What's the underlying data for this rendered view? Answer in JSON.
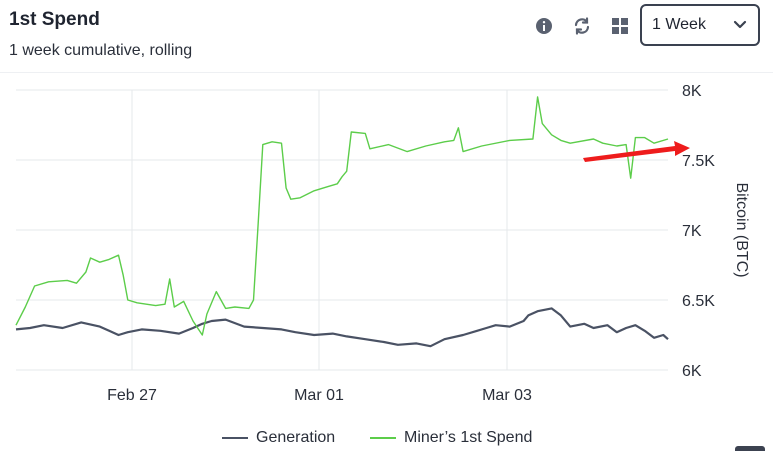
{
  "header": {
    "title": "1st Spend",
    "subtitle": "1 week cumulative, rolling"
  },
  "toolbar": {
    "info_icon": "info-icon",
    "refresh_icon": "refresh-icon",
    "grid_icon": "grid-icon",
    "range_select": {
      "value": "1 Week"
    }
  },
  "colors": {
    "generation": "#4a5264",
    "miners_first_spend": "#5ccd4a",
    "grid": "#e6e8eb",
    "annotation_arrow": "#ee1c1c"
  },
  "chart_data": {
    "type": "line",
    "x_ticks": [
      "Feb 27",
      "Mar 01",
      "Mar 03"
    ],
    "ylabel": "Bitcoin (BTC)",
    "y_ticks": [
      "6K",
      "6.5K",
      "7K",
      "7.5K",
      "8K"
    ],
    "ylim": [
      6000,
      8000
    ],
    "xlim": [
      0,
      7
    ],
    "grid": true,
    "legend_position": "bottom",
    "series": [
      {
        "name": "Generation",
        "points": [
          [
            0.0,
            6290
          ],
          [
            0.15,
            6300
          ],
          [
            0.3,
            6320
          ],
          [
            0.5,
            6300
          ],
          [
            0.7,
            6340
          ],
          [
            0.9,
            6310
          ],
          [
            1.0,
            6280
          ],
          [
            1.1,
            6250
          ],
          [
            1.2,
            6270
          ],
          [
            1.35,
            6290
          ],
          [
            1.55,
            6280
          ],
          [
            1.75,
            6260
          ],
          [
            1.9,
            6300
          ],
          [
            2.0,
            6330
          ],
          [
            2.1,
            6350
          ],
          [
            2.25,
            6360
          ],
          [
            2.45,
            6310
          ],
          [
            2.65,
            6300
          ],
          [
            2.85,
            6290
          ],
          [
            3.0,
            6270
          ],
          [
            3.2,
            6250
          ],
          [
            3.4,
            6260
          ],
          [
            3.55,
            6240
          ],
          [
            3.75,
            6220
          ],
          [
            3.95,
            6200
          ],
          [
            4.1,
            6180
          ],
          [
            4.3,
            6190
          ],
          [
            4.45,
            6170
          ],
          [
            4.6,
            6220
          ],
          [
            4.8,
            6250
          ],
          [
            4.95,
            6280
          ],
          [
            5.05,
            6300
          ],
          [
            5.15,
            6320
          ],
          [
            5.3,
            6310
          ],
          [
            5.45,
            6350
          ],
          [
            5.5,
            6390
          ],
          [
            5.6,
            6420
          ],
          [
            5.75,
            6440
          ],
          [
            5.85,
            6390
          ],
          [
            5.95,
            6310
          ],
          [
            6.1,
            6330
          ],
          [
            6.2,
            6300
          ],
          [
            6.35,
            6320
          ],
          [
            6.45,
            6270
          ],
          [
            6.55,
            6300
          ],
          [
            6.65,
            6320
          ],
          [
            6.75,
            6280
          ],
          [
            6.85,
            6230
          ],
          [
            6.95,
            6250
          ],
          [
            7.0,
            6220
          ]
        ]
      },
      {
        "name": "Miner’s 1st Spend",
        "points": [
          [
            0.0,
            6320
          ],
          [
            0.1,
            6450
          ],
          [
            0.2,
            6600
          ],
          [
            0.35,
            6630
          ],
          [
            0.55,
            6640
          ],
          [
            0.65,
            6620
          ],
          [
            0.75,
            6700
          ],
          [
            0.8,
            6800
          ],
          [
            0.9,
            6770
          ],
          [
            1.0,
            6790
          ],
          [
            1.1,
            6820
          ],
          [
            1.15,
            6680
          ],
          [
            1.2,
            6500
          ],
          [
            1.3,
            6480
          ],
          [
            1.5,
            6460
          ],
          [
            1.6,
            6470
          ],
          [
            1.65,
            6650
          ],
          [
            1.7,
            6450
          ],
          [
            1.8,
            6490
          ],
          [
            1.9,
            6350
          ],
          [
            2.0,
            6250
          ],
          [
            2.05,
            6400
          ],
          [
            2.15,
            6560
          ],
          [
            2.25,
            6440
          ],
          [
            2.35,
            6450
          ],
          [
            2.5,
            6440
          ],
          [
            2.55,
            6500
          ],
          [
            2.6,
            7050
          ],
          [
            2.65,
            7610
          ],
          [
            2.75,
            7630
          ],
          [
            2.85,
            7620
          ],
          [
            2.9,
            7300
          ],
          [
            2.95,
            7220
          ],
          [
            3.05,
            7230
          ],
          [
            3.2,
            7280
          ],
          [
            3.35,
            7310
          ],
          [
            3.45,
            7330
          ],
          [
            3.5,
            7380
          ],
          [
            3.55,
            7420
          ],
          [
            3.6,
            7700
          ],
          [
            3.75,
            7690
          ],
          [
            3.8,
            7580
          ],
          [
            4.0,
            7610
          ],
          [
            4.2,
            7560
          ],
          [
            4.4,
            7600
          ],
          [
            4.6,
            7630
          ],
          [
            4.7,
            7640
          ],
          [
            4.75,
            7730
          ],
          [
            4.8,
            7560
          ],
          [
            5.0,
            7600
          ],
          [
            5.3,
            7640
          ],
          [
            5.55,
            7650
          ],
          [
            5.6,
            7950
          ],
          [
            5.65,
            7760
          ],
          [
            5.75,
            7680
          ],
          [
            5.85,
            7640
          ],
          [
            5.95,
            7620
          ],
          [
            6.2,
            7650
          ],
          [
            6.3,
            7620
          ],
          [
            6.45,
            7600
          ],
          [
            6.55,
            7610
          ],
          [
            6.6,
            7370
          ],
          [
            6.65,
            7660
          ],
          [
            6.75,
            7660
          ],
          [
            6.85,
            7620
          ],
          [
            7.0,
            7650
          ]
        ]
      }
    ]
  }
}
